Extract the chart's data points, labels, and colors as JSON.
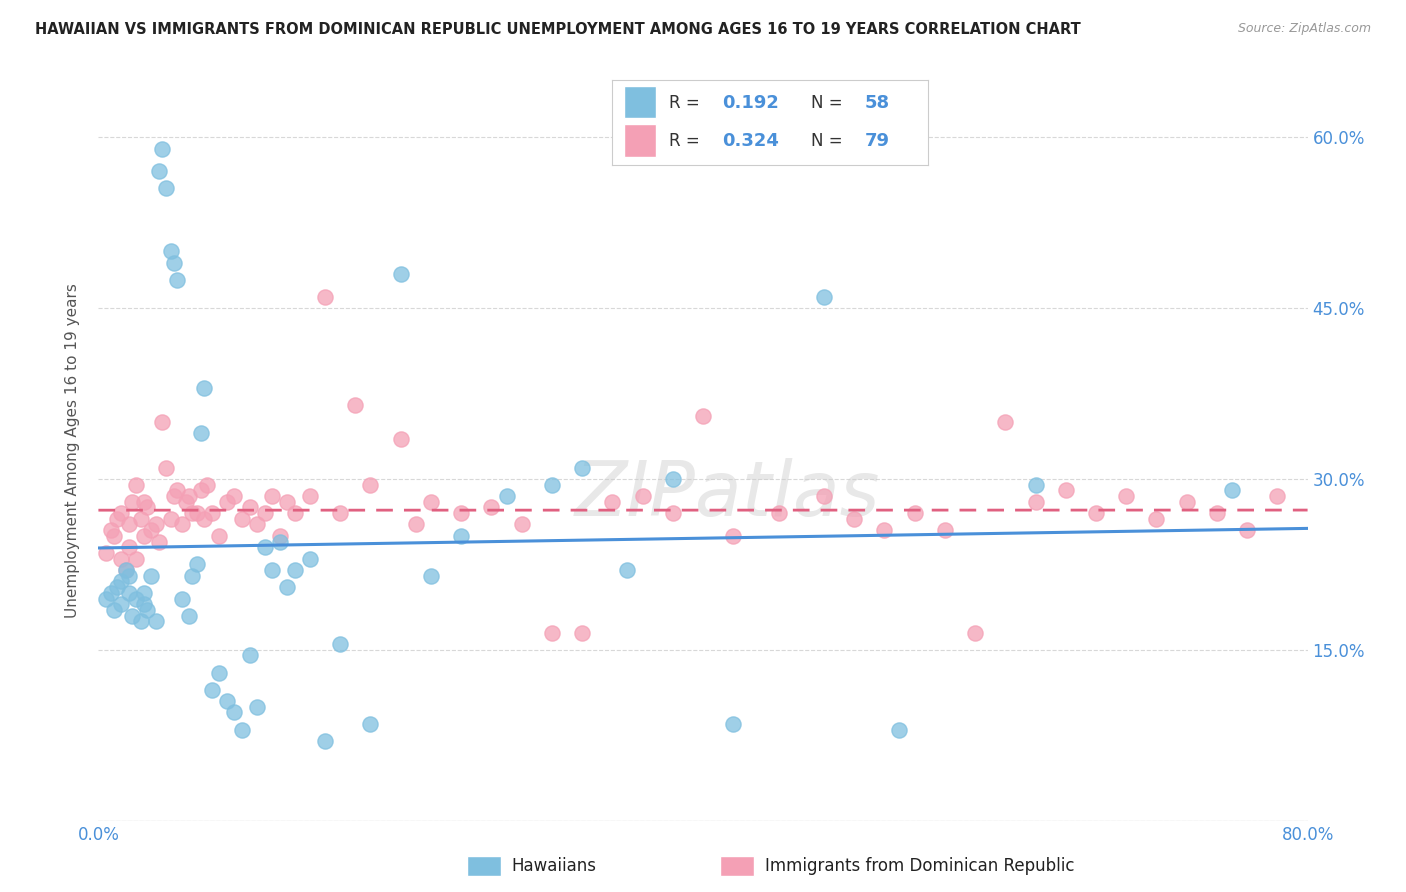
{
  "title": "HAWAIIAN VS IMMIGRANTS FROM DOMINICAN REPUBLIC UNEMPLOYMENT AMONG AGES 16 TO 19 YEARS CORRELATION CHART",
  "source": "Source: ZipAtlas.com",
  "ylabel": "Unemployment Among Ages 16 to 19 years",
  "xlim": [
    0.0,
    0.8
  ],
  "ylim": [
    0.0,
    0.65
  ],
  "hawaiians_color": "#7fbfdf",
  "hawaiians_line_color": "#4a90d9",
  "dominican_color": "#f4a0b5",
  "dominican_line_color": "#e06080",
  "hawaiians_R": 0.192,
  "hawaiians_N": 58,
  "dominican_R": 0.324,
  "dominican_N": 79,
  "background_color": "#ffffff",
  "grid_color": "#d8d8d8",
  "watermark": "ZIPatlas",
  "haw_x": [
    0.005,
    0.008,
    0.01,
    0.012,
    0.015,
    0.015,
    0.018,
    0.02,
    0.02,
    0.022,
    0.025,
    0.028,
    0.03,
    0.03,
    0.032,
    0.035,
    0.038,
    0.04,
    0.042,
    0.045,
    0.048,
    0.05,
    0.052,
    0.055,
    0.06,
    0.062,
    0.065,
    0.068,
    0.07,
    0.075,
    0.08,
    0.085,
    0.09,
    0.095,
    0.1,
    0.105,
    0.11,
    0.115,
    0.12,
    0.125,
    0.13,
    0.14,
    0.15,
    0.16,
    0.18,
    0.2,
    0.22,
    0.24,
    0.27,
    0.3,
    0.32,
    0.35,
    0.38,
    0.42,
    0.48,
    0.53,
    0.62,
    0.75
  ],
  "haw_y": [
    0.195,
    0.2,
    0.185,
    0.205,
    0.21,
    0.19,
    0.22,
    0.215,
    0.2,
    0.18,
    0.195,
    0.175,
    0.19,
    0.2,
    0.185,
    0.215,
    0.175,
    0.57,
    0.59,
    0.555,
    0.5,
    0.49,
    0.475,
    0.195,
    0.18,
    0.215,
    0.225,
    0.34,
    0.38,
    0.115,
    0.13,
    0.105,
    0.095,
    0.08,
    0.145,
    0.1,
    0.24,
    0.22,
    0.245,
    0.205,
    0.22,
    0.23,
    0.07,
    0.155,
    0.085,
    0.48,
    0.215,
    0.25,
    0.285,
    0.295,
    0.31,
    0.22,
    0.3,
    0.085,
    0.46,
    0.08,
    0.295,
    0.29
  ],
  "dom_x": [
    0.005,
    0.008,
    0.01,
    0.012,
    0.015,
    0.015,
    0.018,
    0.02,
    0.02,
    0.022,
    0.025,
    0.025,
    0.028,
    0.03,
    0.03,
    0.032,
    0.035,
    0.038,
    0.04,
    0.042,
    0.045,
    0.048,
    0.05,
    0.052,
    0.055,
    0.058,
    0.06,
    0.062,
    0.065,
    0.068,
    0.07,
    0.072,
    0.075,
    0.08,
    0.085,
    0.09,
    0.095,
    0.1,
    0.105,
    0.11,
    0.115,
    0.12,
    0.125,
    0.13,
    0.14,
    0.15,
    0.16,
    0.17,
    0.18,
    0.2,
    0.21,
    0.22,
    0.24,
    0.26,
    0.28,
    0.3,
    0.32,
    0.34,
    0.36,
    0.38,
    0.4,
    0.42,
    0.45,
    0.48,
    0.5,
    0.52,
    0.54,
    0.56,
    0.58,
    0.6,
    0.62,
    0.64,
    0.66,
    0.68,
    0.7,
    0.72,
    0.74,
    0.76,
    0.78
  ],
  "dom_y": [
    0.235,
    0.255,
    0.25,
    0.265,
    0.27,
    0.23,
    0.22,
    0.26,
    0.24,
    0.28,
    0.23,
    0.295,
    0.265,
    0.25,
    0.28,
    0.275,
    0.255,
    0.26,
    0.245,
    0.35,
    0.31,
    0.265,
    0.285,
    0.29,
    0.26,
    0.28,
    0.285,
    0.27,
    0.27,
    0.29,
    0.265,
    0.295,
    0.27,
    0.25,
    0.28,
    0.285,
    0.265,
    0.275,
    0.26,
    0.27,
    0.285,
    0.25,
    0.28,
    0.27,
    0.285,
    0.46,
    0.27,
    0.365,
    0.295,
    0.335,
    0.26,
    0.28,
    0.27,
    0.275,
    0.26,
    0.165,
    0.165,
    0.28,
    0.285,
    0.27,
    0.355,
    0.25,
    0.27,
    0.285,
    0.265,
    0.255,
    0.27,
    0.255,
    0.165,
    0.35,
    0.28,
    0.29,
    0.27,
    0.285,
    0.265,
    0.28,
    0.27,
    0.255,
    0.285
  ]
}
